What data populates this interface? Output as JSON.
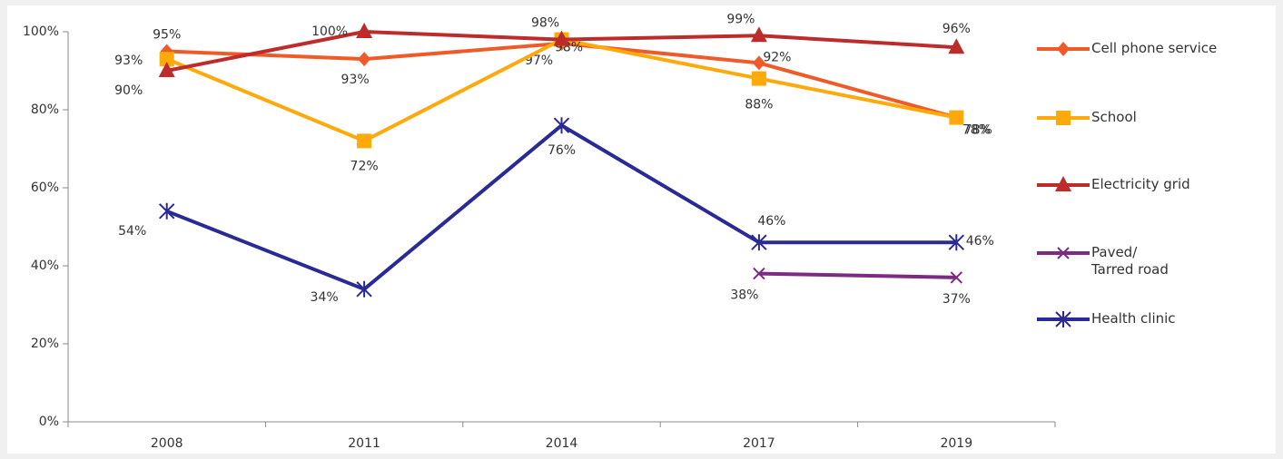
{
  "chart_data": {
    "type": "line",
    "categories": [
      "2008",
      "2011",
      "2014",
      "2017",
      "2019"
    ],
    "ylim": [
      0,
      100
    ],
    "yticks": [
      {
        "value": 0,
        "label": "0%"
      },
      {
        "value": 20,
        "label": "20%"
      },
      {
        "value": 40,
        "label": "40%"
      },
      {
        "value": 60,
        "label": "60%"
      },
      {
        "value": 80,
        "label": "80%"
      },
      {
        "value": 100,
        "label": "100%"
      }
    ],
    "legend": "right",
    "series": [
      {
        "name": "Cell phone service",
        "color": "#f05a28",
        "marker": "diamond",
        "values": [
          95,
          93,
          97,
          92,
          78
        ],
        "value_labels": [
          "95%",
          "93%",
          "97%",
          "92%",
          "78%"
        ]
      },
      {
        "name": "School",
        "color": "#ffa90a",
        "marker": "square",
        "values": [
          93,
          72,
          98,
          88,
          78
        ],
        "value_labels": [
          "93%",
          "72%",
          "98%",
          "88%",
          "78%"
        ]
      },
      {
        "name": "Electricity grid",
        "color": "#be2b2b",
        "marker": "triangle",
        "values": [
          90,
          100,
          98,
          99,
          96
        ],
        "value_labels": [
          "90%",
          "100%",
          "98%",
          "99%",
          "96%"
        ]
      },
      {
        "name": "Paved/\nTarred road",
        "color": "#7d2a84",
        "marker": "x",
        "values": [
          null,
          null,
          null,
          38,
          37
        ],
        "value_labels": [
          null,
          null,
          null,
          "38%",
          "37%"
        ]
      },
      {
        "name": "Health clinic",
        "color": "#2a2a96",
        "marker": "star",
        "values": [
          54,
          34,
          76,
          46,
          46
        ],
        "value_labels": [
          "54%",
          "34%",
          "76%",
          "46%",
          "46%"
        ]
      }
    ]
  }
}
